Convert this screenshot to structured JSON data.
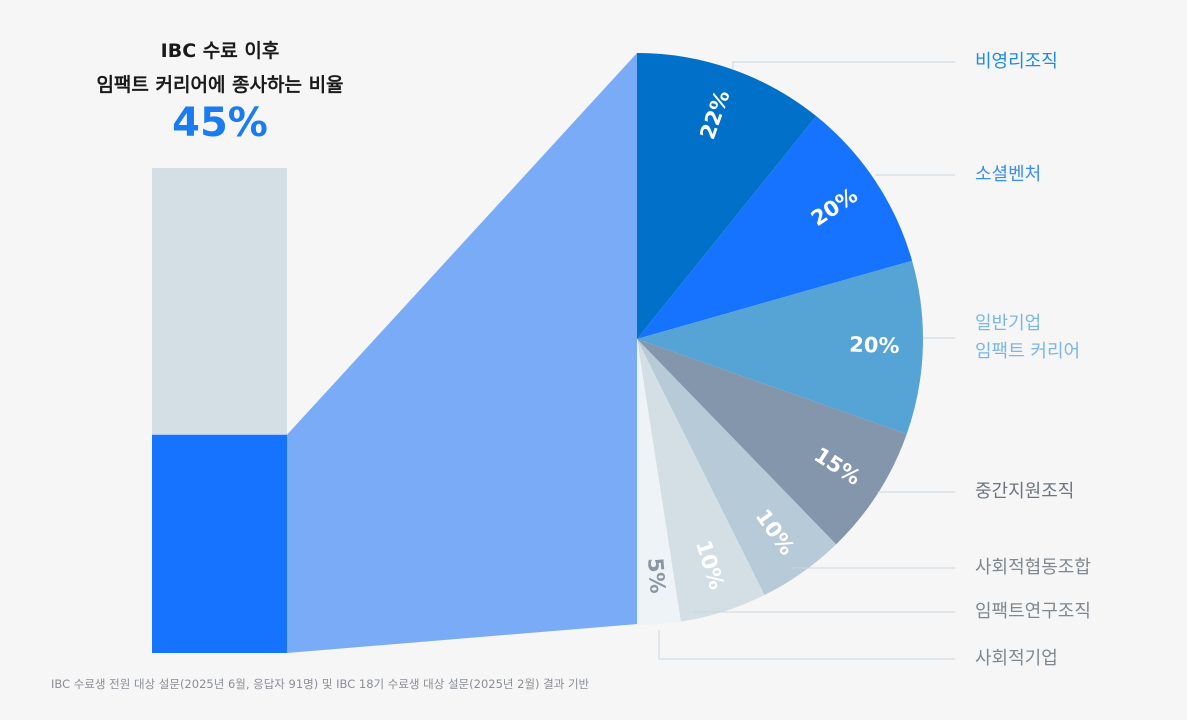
{
  "title": {
    "line1": "IBC 수료 이후",
    "line2": "임팩트 커리어에 종사하는 비율",
    "highlight": "45%"
  },
  "footnote": "IBC 수료생 전원 대상 설문(2025년 6월, 응답자 91명) 및 IBC 18기 수료생 대상 설문(2025년 2월) 결과 기반",
  "chart_data": [
    {
      "type": "bar",
      "stacked": true,
      "values_percent": {
        "impact_career": 45,
        "other": 55
      },
      "colors": {
        "impact_career": "#1673ff",
        "other": "#d3dee5"
      }
    },
    {
      "type": "pie",
      "slices": [
        {
          "label_lines": [
            "비영리조직"
          ],
          "value": 22,
          "value_label": "22%",
          "color": "#0070c8",
          "label_color": "#1f8be8"
        },
        {
          "label_lines": [
            "소셜벤처"
          ],
          "value": 20,
          "value_label": "20%",
          "color": "#1673ff",
          "label_color": "#3a8ef2"
        },
        {
          "label_lines": [
            "일반기업",
            "임팩트 커리어"
          ],
          "value": 20,
          "value_label": "20%",
          "color": "#56a3d6",
          "label_color": "#7ab7e6"
        },
        {
          "label_lines": [
            "중간지원조직"
          ],
          "value": 15,
          "value_label": "15%",
          "color": "#8496ab",
          "label_color": "#6b7580"
        },
        {
          "label_lines": [
            "사회적협동조합"
          ],
          "value": 10,
          "value_label": "10%",
          "color": "#b6cad7",
          "label_color": "#7f8890"
        },
        {
          "label_lines": [
            "임팩트연구조직"
          ],
          "value": 10,
          "value_label": "10%",
          "color": "#d3dee5",
          "label_color": "#7f8890"
        },
        {
          "label_lines": [
            "사회적기업"
          ],
          "value": 5,
          "value_label": "5%",
          "color": "#eef3f7",
          "label_color": "#7f8890",
          "value_color": "#8a96a3"
        }
      ]
    }
  ]
}
